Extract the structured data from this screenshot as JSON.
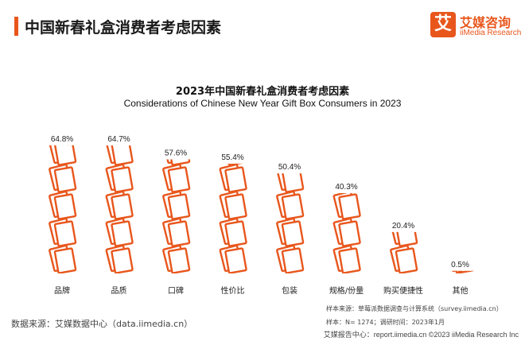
{
  "header": {
    "title": "中国新春礼盒消费者考虑因素"
  },
  "logo": {
    "mark": "艾",
    "name_cn": "艾媒咨询",
    "name_en": "iiMedia Research"
  },
  "chart_data": {
    "type": "bar",
    "title": "2023年中国新春礼盒消费者考虑因素",
    "subtitle": "Considerations of Chinese New Year Gift Box Consumers in 2023",
    "categories": [
      "品牌",
      "品质",
      "口碑",
      "性价比",
      "包装",
      "规格/份量",
      "购买便捷性",
      "其他"
    ],
    "values": [
      64.8,
      64.7,
      57.6,
      55.4,
      50.4,
      40.3,
      20.4,
      0.5
    ],
    "value_labels": [
      "64.8%",
      "64.7%",
      "57.6%",
      "55.4%",
      "50.4%",
      "40.3%",
      "20.4%",
      "0.5%"
    ],
    "unit": "%",
    "ylim": [
      0,
      70
    ],
    "bar_style": "pictograph-stacked-notebook-icons",
    "bar_color": "#e8561c",
    "grid": false,
    "legend": "none"
  },
  "footer": {
    "data_source": "数据来源：艾媒数据中心（data.iimedia.cn）",
    "sample_source": "样本来源：草莓派数据调查与计算系统（survey.iimedia.cn）",
    "sample_size": "样本：N= 1274；调研时间：2023年1月",
    "copyright": "艾媒报告中心：report.iimedia.cn  ©2023  iiMedia Research  Inc"
  }
}
